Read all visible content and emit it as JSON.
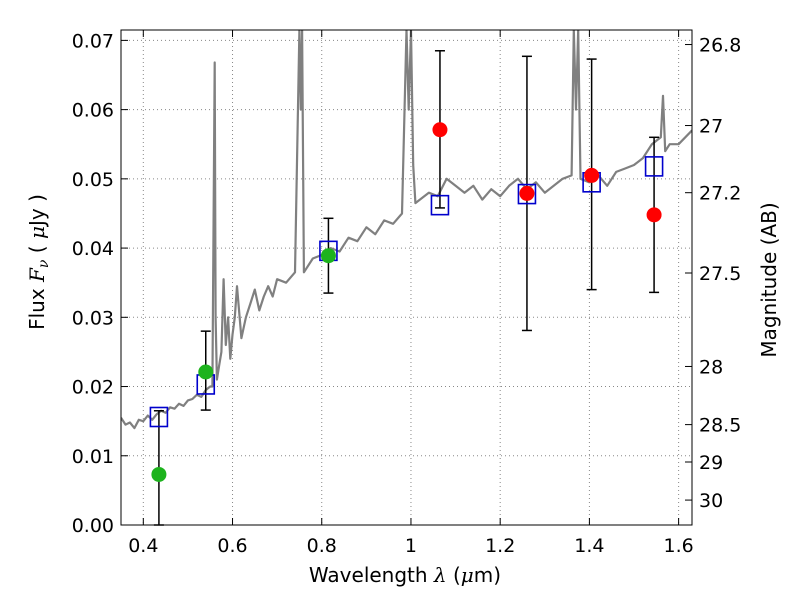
{
  "chart_data": {
    "type": "scatter",
    "title": "",
    "xlabel": {
      "prefix": "Wavelength ",
      "symbol": "λ",
      "unit_open": " (",
      "unit_symbol": "μ",
      "unit_rest": "m)"
    },
    "ylabel": {
      "prefix": "Flux ",
      "symbol": "F",
      "subscript": "ν",
      "unit_open": " ( ",
      "unit_symbol": "μ",
      "unit_rest": "Jy )"
    },
    "y2label": "Magnitude (AB)",
    "xlim": [
      0.35,
      1.63
    ],
    "ylim": [
      0,
      0.0715
    ],
    "grid": true,
    "x_ticks": [
      0.4,
      0.6,
      0.8,
      1.0,
      1.2,
      1.4,
      1.6
    ],
    "x_tick_labels": [
      "0.4",
      "0.6",
      "0.8",
      "1",
      "1.2",
      "1.4",
      "1.6"
    ],
    "y_ticks": [
      0,
      0.01,
      0.02,
      0.03,
      0.04,
      0.05,
      0.06,
      0.07
    ],
    "y_tick_labels": [
      "0.00",
      "0.01",
      "0.02",
      "0.03",
      "0.04",
      "0.05",
      "0.06",
      "0.07"
    ],
    "y2_ticks": [
      {
        "label": "26.8",
        "flux": 0.0694
      },
      {
        "label": "27",
        "flux": 0.0577
      },
      {
        "label": "27.2",
        "flux": 0.048
      },
      {
        "label": "27.5",
        "flux": 0.0364
      },
      {
        "label": "28",
        "flux": 0.0229
      },
      {
        "label": "28.5",
        "flux": 0.0145
      },
      {
        "label": "29",
        "flux": 0.0091
      },
      {
        "label": "30",
        "flux": 0.0036
      }
    ],
    "colors": {
      "model": "#808080",
      "green": "#1db31d",
      "red": "#ff0000",
      "square": "#0000cc",
      "errorbar": "#000000",
      "grid": "#888888"
    },
    "series": [
      {
        "kind": "model_spectrum",
        "x": [
          0.35,
          0.36,
          0.37,
          0.38,
          0.39,
          0.4,
          0.41,
          0.42,
          0.43,
          0.44,
          0.45,
          0.46,
          0.47,
          0.48,
          0.49,
          0.5,
          0.51,
          0.52,
          0.53,
          0.54,
          0.55,
          0.555,
          0.56,
          0.562,
          0.565,
          0.57,
          0.575,
          0.58,
          0.585,
          0.59,
          0.595,
          0.6,
          0.605,
          0.61,
          0.62,
          0.63,
          0.64,
          0.65,
          0.66,
          0.67,
          0.68,
          0.69,
          0.7,
          0.72,
          0.74,
          0.75,
          0.753,
          0.756,
          0.76,
          0.78,
          0.8,
          0.82,
          0.84,
          0.86,
          0.88,
          0.9,
          0.92,
          0.94,
          0.96,
          0.98,
          0.99,
          0.995,
          1.0,
          1.005,
          1.01,
          1.02,
          1.04,
          1.06,
          1.08,
          1.1,
          1.12,
          1.14,
          1.16,
          1.18,
          1.2,
          1.22,
          1.24,
          1.26,
          1.28,
          1.3,
          1.32,
          1.34,
          1.36,
          1.365,
          1.37,
          1.375,
          1.38,
          1.4,
          1.42,
          1.44,
          1.46,
          1.48,
          1.5,
          1.52,
          1.54,
          1.56,
          1.565,
          1.57,
          1.58,
          1.6,
          1.63
        ],
        "y": [
          0.0155,
          0.0145,
          0.0148,
          0.014,
          0.0152,
          0.015,
          0.0158,
          0.0152,
          0.016,
          0.0165,
          0.0162,
          0.017,
          0.0168,
          0.0175,
          0.0172,
          0.018,
          0.0182,
          0.0188,
          0.0185,
          0.0195,
          0.02,
          0.02,
          0.0668,
          0.03,
          0.021,
          0.023,
          0.025,
          0.0355,
          0.026,
          0.03,
          0.024,
          0.0275,
          0.03,
          0.0345,
          0.027,
          0.03,
          0.032,
          0.034,
          0.031,
          0.033,
          0.0345,
          0.033,
          0.0355,
          0.035,
          0.0365,
          0.0715,
          0.06,
          0.0715,
          0.0365,
          0.0385,
          0.039,
          0.04,
          0.0395,
          0.0415,
          0.041,
          0.043,
          0.042,
          0.044,
          0.0435,
          0.045,
          0.0715,
          0.06,
          0.0715,
          0.052,
          0.0465,
          0.047,
          0.048,
          0.0475,
          0.05,
          0.049,
          0.048,
          0.049,
          0.047,
          0.0485,
          0.0475,
          0.049,
          0.05,
          0.0485,
          0.0495,
          0.048,
          0.049,
          0.05,
          0.0505,
          0.0715,
          0.06,
          0.0715,
          0.05,
          0.0495,
          0.0505,
          0.049,
          0.051,
          0.0515,
          0.052,
          0.053,
          0.055,
          0.056,
          0.062,
          0.054,
          0.055,
          0.055,
          0.057
        ]
      },
      {
        "kind": "model_photometry",
        "marker": "open-square",
        "x": [
          0.435,
          0.54,
          0.815,
          1.065,
          1.26,
          1.405,
          1.545
        ],
        "y": [
          0.0156,
          0.0203,
          0.0396,
          0.0462,
          0.0478,
          0.0495,
          0.0518
        ]
      },
      {
        "kind": "observed_flux_green",
        "marker": "filled-circle",
        "x": [
          0.435,
          0.54,
          0.815
        ],
        "y": [
          0.0073,
          0.0221,
          0.0389
        ],
        "err_low": [
          0.0,
          0.0166,
          0.0335
        ],
        "err_high": [
          0.0165,
          0.028,
          0.0443
        ]
      },
      {
        "kind": "observed_flux_red",
        "marker": "filled-circle",
        "x": [
          1.065,
          1.26,
          1.405,
          1.545
        ],
        "y": [
          0.0571,
          0.0479,
          0.0505,
          0.0448
        ],
        "err_low": [
          0.0458,
          0.0281,
          0.034,
          0.0336
        ],
        "err_high": [
          0.0685,
          0.0677,
          0.0673,
          0.056
        ]
      }
    ]
  }
}
